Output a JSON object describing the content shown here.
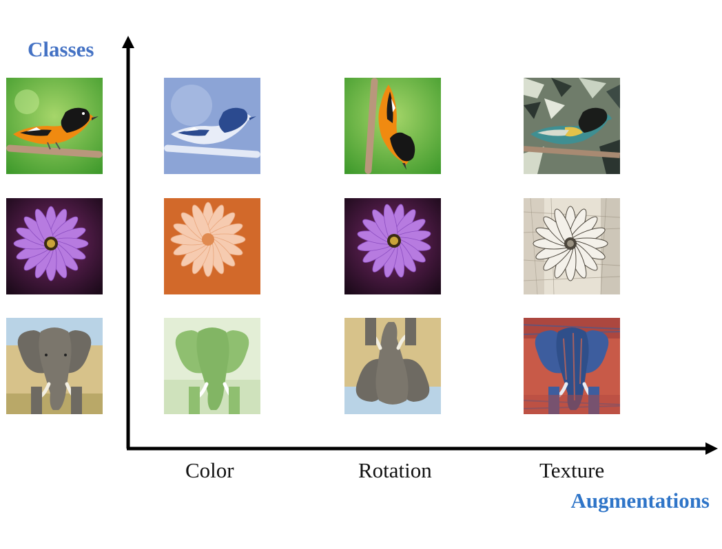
{
  "labels": {
    "y_axis": "Classes",
    "x_axis": "Augmentations"
  },
  "columns": [
    "Color",
    "Rotation",
    "Texture"
  ],
  "rows": [
    {
      "class": "bird",
      "variants": [
        "original",
        "color",
        "rotation",
        "texture"
      ]
    },
    {
      "class": "flower",
      "variants": [
        "original",
        "color",
        "rotation",
        "texture"
      ]
    },
    {
      "class": "elephant",
      "variants": [
        "original",
        "color",
        "rotation",
        "texture"
      ]
    }
  ],
  "colors": {
    "classes_label": "#4472c4",
    "augmentations_label": "#2f75c8",
    "axis": "#000000"
  }
}
